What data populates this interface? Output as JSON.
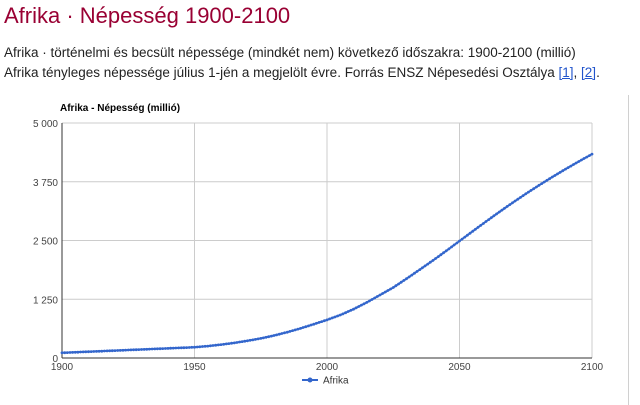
{
  "header": {
    "title": "Afrika · Népesség 1900-2100"
  },
  "description": {
    "line1": "Afrika · történelmi és becsült népessége (mindkét nem) következő időszakra: 1900-2100 (millió)",
    "line2_text": "Afrika tényleges népessége július 1-jén a megjelölt évre. Forrás ENSZ Népesedési Osztálya ",
    "link1": "[1]",
    "sep": ", ",
    "link2": "[2]",
    "end": "."
  },
  "colors": {
    "title": "#990033",
    "series": "#3366cc",
    "link": "#2255cc",
    "grid": "#cccccc"
  },
  "chart_data": {
    "type": "line",
    "title": "Afrika - Népesség (millió)",
    "xlabel": "",
    "ylabel": "",
    "xlim": [
      1900,
      2100
    ],
    "ylim": [
      0,
      5000
    ],
    "x_ticks": [
      "1900",
      "1950",
      "2000",
      "2050",
      "2100"
    ],
    "x_tick_values": [
      1900,
      1950,
      2000,
      2050,
      2100
    ],
    "y_ticks": [
      "0",
      "1 250",
      "2 500",
      "3 750",
      "5 000"
    ],
    "y_tick_values": [
      0,
      1250,
      2500,
      3750,
      5000
    ],
    "grid": true,
    "legend_position": "bottom",
    "series": [
      {
        "name": "Afrika",
        "x": [
          1900,
          1950,
          1955,
          1960,
          1965,
          1970,
          1975,
          1980,
          1985,
          1990,
          1995,
          2000,
          2005,
          2010,
          2015,
          2020,
          2025,
          2030,
          2035,
          2040,
          2045,
          2050,
          2055,
          2060,
          2065,
          2070,
          2075,
          2080,
          2085,
          2090,
          2095,
          2100
        ],
        "values": [
          110,
          229,
          254,
          285,
          322,
          366,
          416,
          478,
          550,
          630,
          720,
          811,
          914,
          1039,
          1182,
          1341,
          1500,
          1688,
          1880,
          2077,
          2280,
          2489,
          2697,
          2904,
          3107,
          3303,
          3493,
          3675,
          3850,
          4019,
          4181,
          4338
        ]
      }
    ]
  }
}
